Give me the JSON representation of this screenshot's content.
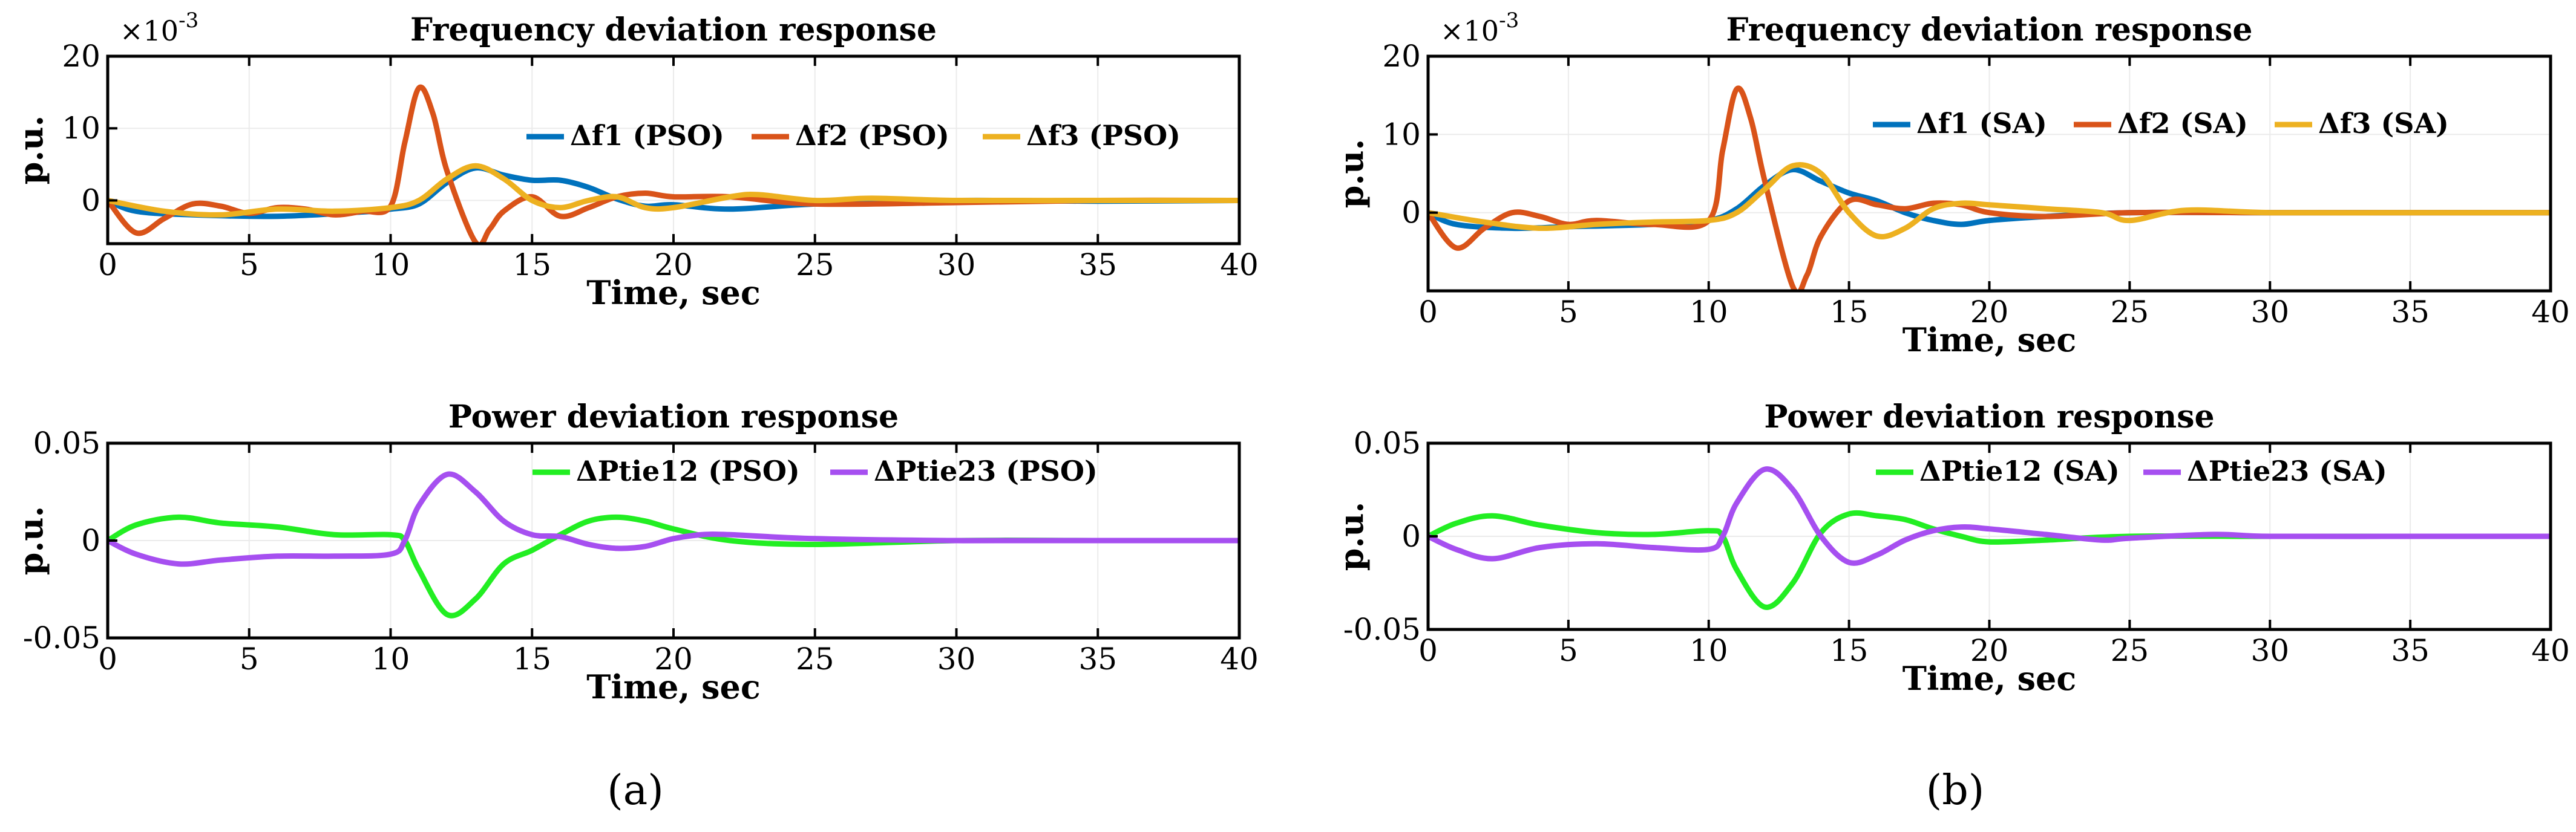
{
  "panels": [
    {
      "label_open": "(",
      "label": "a",
      "label_close": ")"
    },
    {
      "label_open": "(",
      "label": "b",
      "label_close": ")"
    }
  ],
  "chart_data": [
    {
      "type": "line",
      "panel": "a",
      "title": "Frequency deviation response",
      "xlabel": "Time, sec",
      "ylabel": "p.u.",
      "y_exponent": "×10",
      "y_exponent_power": "-3",
      "xlim": [
        0,
        40
      ],
      "ylim": [
        -6,
        20
      ],
      "xticks": [
        0,
        5,
        10,
        15,
        20,
        25,
        30,
        35,
        40
      ],
      "yticks": [
        0,
        10,
        20
      ],
      "legend_position": "upper-right",
      "series": [
        {
          "name": "Δf1 (PSO)",
          "color": "#0072BD",
          "x": [
            0,
            1,
            3,
            6,
            9,
            10,
            11,
            12,
            13,
            14,
            15,
            16,
            17,
            18,
            19,
            20,
            22,
            25,
            30,
            35,
            40
          ],
          "y": [
            0,
            -1.5,
            -2,
            -2.2,
            -1.6,
            -1.2,
            -0.5,
            2.5,
            4.5,
            3.5,
            2.8,
            2.8,
            1.8,
            0.2,
            -0.8,
            -0.6,
            -1.2,
            -0.5,
            0,
            -0.1,
            0
          ]
        },
        {
          "name": "Δf2 (PSO)",
          "color": "#D95319",
          "x": [
            0,
            1,
            2,
            3,
            4,
            5,
            6,
            7,
            8,
            9,
            10,
            10.5,
            11,
            11.5,
            12,
            13,
            13.5,
            14,
            15,
            16,
            17,
            18,
            19,
            20,
            22,
            25,
            30,
            35,
            40
          ],
          "y": [
            0,
            -4.5,
            -2.5,
            -0.5,
            -0.8,
            -1.8,
            -1,
            -1.2,
            -2,
            -1.5,
            -0.8,
            8,
            15.6,
            12,
            4,
            -5.8,
            -4,
            -1.5,
            0.5,
            -2.2,
            -1,
            0.5,
            1,
            0.5,
            0.5,
            -0.5,
            -0.3,
            0,
            0
          ]
        },
        {
          "name": "Δf3 (PSO)",
          "color": "#EDB120",
          "x": [
            0,
            2,
            4,
            6,
            8,
            10,
            11,
            12,
            13,
            14,
            15,
            16,
            17,
            18,
            19,
            20,
            22,
            23,
            25,
            27,
            30,
            35,
            40
          ],
          "y": [
            0,
            -1.5,
            -2,
            -1.2,
            -1.5,
            -1,
            0,
            3,
            4.8,
            3,
            0,
            -1,
            0,
            0.5,
            -1,
            -1,
            0.5,
            0.8,
            0,
            0.3,
            0,
            0,
            0
          ]
        }
      ]
    },
    {
      "type": "line",
      "panel": "a",
      "title": "Power deviation response",
      "xlabel": "Time, sec",
      "ylabel": "p.u.",
      "xlim": [
        0,
        40
      ],
      "ylim": [
        -0.05,
        0.05
      ],
      "xticks": [
        0,
        5,
        10,
        15,
        20,
        25,
        30,
        35,
        40
      ],
      "yticks": [
        -0.05,
        0,
        0.05
      ],
      "ytick_labels": [
        "-0.05",
        "0",
        "0.05"
      ],
      "legend_position": "upper-right",
      "series": [
        {
          "name": "ΔPtie12 (PSO)",
          "color": "#22EE22",
          "x": [
            0,
            1,
            2.5,
            4,
            6,
            8,
            10,
            10.5,
            11,
            12,
            13,
            14,
            15,
            16,
            17,
            18,
            19,
            20,
            22,
            25,
            30,
            35,
            40
          ],
          "y": [
            0,
            0.008,
            0.012,
            0.009,
            0.007,
            0.003,
            0.003,
            0,
            -0.015,
            -0.038,
            -0.03,
            -0.012,
            -0.005,
            0.003,
            0.01,
            0.012,
            0.01,
            0.006,
            0,
            -0.002,
            0,
            0,
            0
          ]
        },
        {
          "name": "ΔPtie23 (PSO)",
          "color": "#A64FF0",
          "x": [
            0,
            1,
            2.5,
            4,
            6,
            8,
            10,
            10.5,
            11,
            12,
            13,
            14,
            15,
            16,
            17,
            18,
            19,
            20,
            21,
            22,
            25,
            30,
            35,
            40
          ],
          "y": [
            0,
            -0.007,
            -0.012,
            -0.01,
            -0.008,
            -0.008,
            -0.007,
            0,
            0.018,
            0.034,
            0.025,
            0.01,
            0.003,
            0.002,
            -0.002,
            -0.004,
            -0.003,
            0.001,
            0.003,
            0.003,
            0.001,
            0,
            0,
            0
          ]
        }
      ]
    },
    {
      "type": "line",
      "panel": "b",
      "title": "Frequency deviation response",
      "xlabel": "Time, sec",
      "ylabel": "p.u.",
      "y_exponent": "×10",
      "y_exponent_power": "-3",
      "xlim": [
        0,
        40
      ],
      "ylim": [
        -10,
        20
      ],
      "xticks": [
        0,
        5,
        10,
        15,
        20,
        25,
        30,
        35,
        40
      ],
      "yticks": [
        0,
        10,
        20
      ],
      "legend_position": "upper-right",
      "series": [
        {
          "name": "Δf1 (SA)",
          "color": "#0072BD",
          "x": [
            0,
            1,
            3,
            5,
            8,
            10,
            11,
            12,
            13,
            14,
            15,
            16,
            17,
            18,
            19,
            20,
            22,
            25,
            30,
            35,
            40
          ],
          "y": [
            0,
            -1.5,
            -2,
            -1.8,
            -1.5,
            -1,
            0.5,
            3.5,
            5.5,
            4,
            2.5,
            1.5,
            0,
            -1,
            -1.5,
            -1,
            -0.5,
            0,
            0,
            0,
            0
          ]
        },
        {
          "name": "Δf2 (SA)",
          "color": "#D95319",
          "x": [
            0,
            1,
            2,
            3,
            4,
            5,
            6,
            8,
            10,
            10.5,
            11,
            11.5,
            12,
            13,
            13.5,
            14,
            15,
            16,
            17,
            18,
            19,
            20,
            22,
            25,
            30,
            35,
            40
          ],
          "y": [
            0,
            -4.5,
            -2,
            0,
            -0.5,
            -1.5,
            -1,
            -1.5,
            -1,
            8,
            15.8,
            12,
            4,
            -9.5,
            -8,
            -3,
            1.5,
            1,
            0.5,
            1.2,
            1,
            0,
            -0.5,
            0,
            0,
            0,
            0
          ]
        },
        {
          "name": "Δf3 (SA)",
          "color": "#EDB120",
          "x": [
            0,
            2,
            4,
            6,
            8,
            10,
            11,
            12,
            13,
            14,
            15,
            16,
            17,
            18,
            19,
            20,
            22,
            24,
            25,
            27,
            30,
            35,
            40
          ],
          "y": [
            0,
            -1.2,
            -2,
            -1.5,
            -1.2,
            -1,
            0,
            3,
            6,
            5,
            0,
            -3,
            -2,
            0.5,
            1.2,
            1,
            0.5,
            0,
            -1,
            0.3,
            0,
            0,
            0
          ]
        }
      ]
    },
    {
      "type": "line",
      "panel": "b",
      "title": "Power deviation response",
      "xlabel": "Time, sec",
      "ylabel": "p.u.",
      "xlim": [
        0,
        40
      ],
      "ylim": [
        -0.05,
        0.05
      ],
      "xticks": [
        0,
        5,
        10,
        15,
        20,
        25,
        30,
        35,
        40
      ],
      "yticks": [
        -0.05,
        0,
        0.05
      ],
      "ytick_labels": [
        "-0.05",
        "0",
        "0.05"
      ],
      "legend_position": "upper-right",
      "series": [
        {
          "name": "ΔPtie12 (SA)",
          "color": "#22EE22",
          "x": [
            0,
            1,
            2.3,
            4,
            6,
            8,
            10,
            10.5,
            11,
            12,
            13,
            14,
            15,
            16,
            17,
            18,
            19,
            20,
            22,
            25,
            30,
            35,
            40
          ],
          "y": [
            0,
            0.007,
            0.011,
            0.006,
            0.002,
            0.001,
            0.003,
            0,
            -0.018,
            -0.038,
            -0.025,
            0.002,
            0.012,
            0.011,
            0.009,
            0.004,
            0,
            -0.003,
            -0.002,
            0,
            0,
            0,
            0
          ]
        },
        {
          "name": "ΔPtie23 (SA)",
          "color": "#A64FF0",
          "x": [
            0,
            1,
            2.3,
            4,
            6,
            8,
            10,
            10.5,
            11,
            12,
            13,
            14,
            15,
            16,
            17,
            18,
            19,
            20,
            22,
            24,
            25,
            28,
            30,
            35,
            40
          ],
          "y": [
            0,
            -0.007,
            -0.012,
            -0.006,
            -0.004,
            -0.006,
            -0.007,
            0,
            0.018,
            0.036,
            0.025,
            0,
            -0.014,
            -0.01,
            -0.002,
            0.003,
            0.005,
            0.004,
            0.001,
            -0.002,
            -0.001,
            0.001,
            0,
            0,
            0
          ]
        }
      ]
    }
  ]
}
